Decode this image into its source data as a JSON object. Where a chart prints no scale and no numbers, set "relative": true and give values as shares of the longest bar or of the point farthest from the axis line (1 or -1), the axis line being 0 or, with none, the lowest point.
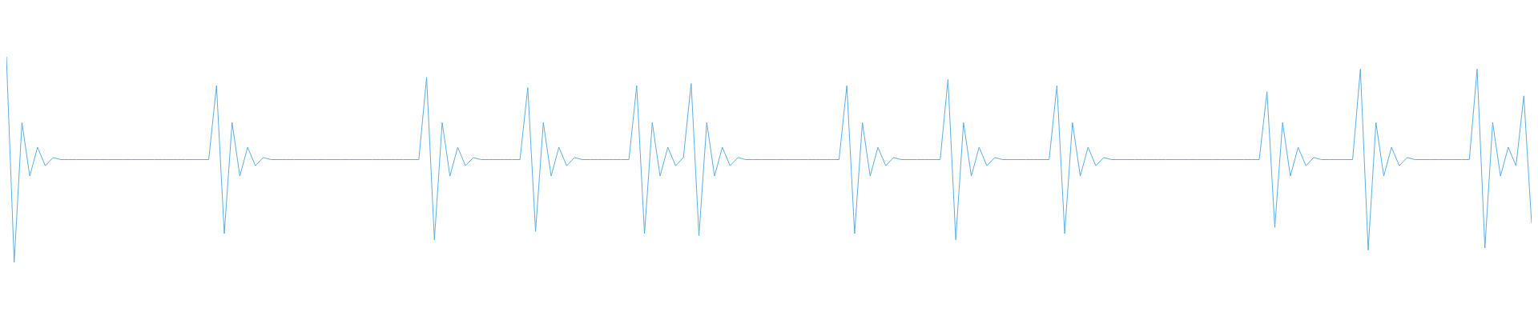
{
  "chart_data": {
    "type": "line",
    "relative": true,
    "tick_labels": false,
    "color": "#5dade2",
    "categories": [
      null,
      null,
      null,
      null,
      null,
      null,
      null,
      null,
      null,
      null,
      null,
      null,
      null,
      null,
      null,
      null,
      null,
      null,
      null,
      null,
      null,
      null,
      null,
      null,
      null,
      null,
      null,
      null,
      null,
      null,
      null,
      null,
      null,
      null,
      null,
      null,
      null,
      null,
      null,
      null,
      null,
      null,
      null,
      null,
      null,
      null,
      null,
      null,
      null,
      null,
      null,
      null,
      null,
      null,
      null,
      null,
      null,
      null,
      null,
      null,
      null,
      null,
      null,
      null,
      null,
      null,
      null,
      null,
      null,
      null,
      null,
      null,
      null,
      null,
      null,
      null,
      null,
      null,
      null,
      null,
      null,
      null,
      null,
      null,
      null,
      null,
      null,
      null,
      null,
      null,
      null,
      null,
      null,
      null,
      null,
      null,
      null,
      null,
      null,
      null,
      null,
      null,
      null,
      null,
      null,
      null,
      null,
      null,
      null,
      null,
      null,
      null,
      null,
      null,
      null,
      null,
      null,
      null,
      null,
      null,
      null,
      null,
      null,
      null,
      null,
      null,
      null,
      null,
      null,
      null,
      null,
      null,
      null,
      null,
      null,
      null,
      null,
      null,
      null,
      null,
      null,
      null,
      null,
      null,
      null,
      null,
      null,
      null,
      null,
      null,
      null,
      null,
      null,
      null,
      null,
      null,
      null,
      null,
      null,
      null,
      null,
      null,
      null,
      null,
      null,
      null,
      null,
      null,
      null,
      null,
      null,
      null,
      null,
      null,
      null,
      null,
      null,
      null,
      null,
      null,
      null,
      null,
      null,
      null,
      null,
      null,
      null,
      null,
      null,
      null,
      null,
      null,
      null,
      null,
      null,
      null,
      null
    ],
    "values": [
      1,
      0,
      0.68,
      0.42,
      0.56,
      0.47,
      0.51,
      0.5,
      0.5,
      0.5,
      0.5,
      0.5,
      0.5,
      0.5,
      0.5,
      0.5,
      0.5,
      0.5,
      0.5,
      0.5,
      0.5,
      0.5,
      0.5,
      0.5,
      0.5,
      0.5,
      0.5,
      0.86,
      0.14,
      0.68,
      0.42,
      0.56,
      0.47,
      0.51,
      0.5,
      0.5,
      0.5,
      0.5,
      0.5,
      0.5,
      0.5,
      0.5,
      0.5,
      0.5,
      0.5,
      0.5,
      0.5,
      0.5,
      0.5,
      0.5,
      0.5,
      0.5,
      0.5,
      0.5,
      0.9,
      0.11,
      0.68,
      0.42,
      0.56,
      0.47,
      0.51,
      0.5,
      0.5,
      0.5,
      0.5,
      0.5,
      0.5,
      0.85,
      0.15,
      0.68,
      0.42,
      0.56,
      0.47,
      0.51,
      0.5,
      0.5,
      0.5,
      0.5,
      0.5,
      0.5,
      0.5,
      0.86,
      0.14,
      0.68,
      0.42,
      0.56,
      0.47,
      0.51,
      0.87,
      0.13,
      0.68,
      0.42,
      0.56,
      0.47,
      0.51,
      0.5,
      0.5,
      0.5,
      0.5,
      0.5,
      0.5,
      0.5,
      0.5,
      0.5,
      0.5,
      0.5,
      0.5,
      0.5,
      0.86,
      0.14,
      0.68,
      0.42,
      0.56,
      0.47,
      0.51,
      0.5,
      0.5,
      0.5,
      0.5,
      0.5,
      0.5,
      0.89,
      0.11,
      0.68,
      0.42,
      0.56,
      0.47,
      0.51,
      0.5,
      0.5,
      0.5,
      0.5,
      0.5,
      0.5,
      0.5,
      0.86,
      0.14,
      0.68,
      0.42,
      0.56,
      0.47,
      0.51,
      0.5,
      0.5,
      0.5,
      0.5,
      0.5,
      0.5,
      0.5,
      0.5,
      0.5,
      0.5,
      0.5,
      0.5,
      0.5,
      0.5,
      0.5,
      0.5,
      0.5,
      0.5,
      0.5,
      0.5,
      0.83,
      0.17,
      0.68,
      0.42,
      0.56,
      0.47,
      0.51,
      0.5,
      0.5,
      0.5,
      0.5,
      0.5,
      0.94,
      0.06,
      0.68,
      0.42,
      0.56,
      0.47,
      0.51,
      0.5,
      0.5,
      0.5,
      0.5,
      0.5,
      0.5,
      0.5,
      0.5,
      0.94,
      0.07,
      0.68,
      0.42,
      0.56,
      0.47,
      0.81,
      0.19
    ]
  }
}
